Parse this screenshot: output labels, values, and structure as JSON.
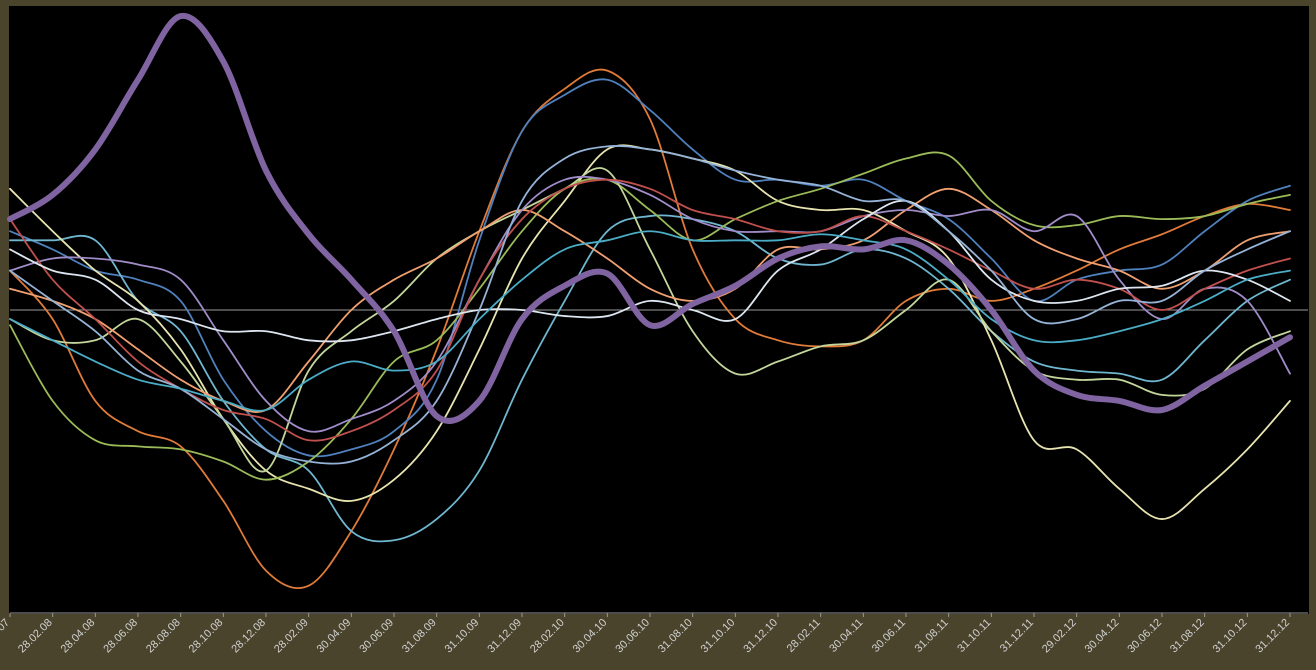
{
  "chart_data": {
    "type": "line",
    "categories": [
      "07",
      "28.02.08",
      "28.04.08",
      "28.06.08",
      "28.08.08",
      "28.10.08",
      "28.12.08",
      "28.02.09",
      "30.04.09",
      "30.06.09",
      "31.08.09",
      "31.10.09",
      "31.12.09",
      "28.02.10",
      "30.04.10",
      "30.06.10",
      "31.08.10",
      "31.10.10",
      "31.12.10",
      "28.02.11",
      "30.04.11",
      "30.06.11",
      "31.08.11",
      "31.10.11",
      "31.12.11",
      "29.02.12",
      "30.04.12",
      "30.06.12",
      "31.08.12",
      "31.10.12",
      "31.12.12"
    ],
    "ylim": [
      -100,
      100
    ],
    "series": [
      {
        "color": "#e07b39",
        "values": [
          13,
          -3,
          -30,
          -40,
          -45,
          -63,
          -86,
          -91,
          -73,
          -46,
          -13,
          26,
          59,
          73,
          79,
          63,
          20,
          -3,
          -10,
          -12,
          -10,
          3,
          7,
          3,
          7,
          13,
          20,
          25,
          31,
          35,
          33
        ]
      },
      {
        "color": "#4f81bd",
        "values": [
          26,
          20,
          13,
          10,
          3,
          -23,
          -40,
          -48,
          -46,
          -40,
          -23,
          23,
          59,
          71,
          76,
          66,
          53,
          43,
          43,
          41,
          43,
          36,
          30,
          17,
          3,
          10,
          13,
          15,
          26,
          36,
          41
        ]
      },
      {
        "color": "#6fb7d0",
        "values": [
          23,
          23,
          23,
          3,
          -7,
          -30,
          -46,
          -53,
          -73,
          -76,
          -69,
          -53,
          -23,
          3,
          26,
          31,
          30,
          26,
          17,
          15,
          20,
          17,
          7,
          -7,
          -17,
          -20,
          -21,
          -23,
          -10,
          3,
          10
        ]
      },
      {
        "color": "#e8e4b0",
        "values": [
          40,
          26,
          13,
          3,
          -13,
          -36,
          -53,
          -59,
          -63,
          -56,
          -40,
          -13,
          17,
          36,
          53,
          53,
          50,
          46,
          36,
          33,
          33,
          26,
          17,
          -10,
          -43,
          -46,
          -59,
          -69,
          -59,
          -46,
          -30
        ]
      },
      {
        "color": "#9bbb59",
        "values": [
          -5,
          -30,
          -43,
          -45,
          -46,
          -50,
          -56,
          -50,
          -36,
          -17,
          -10,
          7,
          26,
          40,
          43,
          33,
          23,
          30,
          36,
          40,
          45,
          50,
          51,
          36,
          28,
          28,
          31,
          30,
          31,
          35,
          38
        ]
      },
      {
        "color": "#c3d69b",
        "values": [
          -3,
          -10,
          -10,
          -3,
          -17,
          -36,
          -53,
          -20,
          -7,
          3,
          17,
          26,
          33,
          40,
          46,
          20,
          -7,
          -21,
          -17,
          -12,
          -10,
          0,
          10,
          -7,
          -20,
          -23,
          -23,
          -28,
          -26,
          -13,
          -7
        ]
      },
      {
        "color": "#f0a070",
        "values": [
          7,
          3,
          -3,
          -13,
          -23,
          -30,
          -33,
          -17,
          0,
          10,
          17,
          26,
          33,
          26,
          17,
          7,
          3,
          7,
          20,
          20,
          23,
          33,
          40,
          33,
          23,
          17,
          13,
          7,
          13,
          23,
          26
        ]
      },
      {
        "color": "#a08cc8",
        "values": [
          13,
          17,
          17,
          15,
          10,
          -10,
          -30,
          -40,
          -36,
          -30,
          -17,
          10,
          33,
          43,
          43,
          38,
          30,
          26,
          26,
          26,
          31,
          33,
          31,
          33,
          26,
          31,
          10,
          -3,
          7,
          3,
          -21
        ]
      },
      {
        "color": "#c0504d",
        "values": [
          30,
          10,
          -3,
          -17,
          -26,
          -33,
          -36,
          -43,
          -40,
          -33,
          -20,
          10,
          30,
          40,
          43,
          40,
          33,
          30,
          26,
          26,
          31,
          26,
          20,
          13,
          7,
          10,
          7,
          0,
          7,
          13,
          17
        ]
      },
      {
        "color": "#dde6f0",
        "values": [
          20,
          13,
          10,
          0,
          -3,
          -7,
          -7,
          -10,
          -10,
          -7,
          -3,
          0,
          0,
          -2,
          -2,
          3,
          0,
          -3,
          13,
          20,
          30,
          36,
          26,
          10,
          3,
          3,
          7,
          8,
          13,
          10,
          3
        ]
      },
      {
        "color": "#95b3d7",
        "values": [
          13,
          3,
          -7,
          -20,
          -26,
          -36,
          -46,
          -50,
          -50,
          -43,
          -30,
          0,
          36,
          50,
          54,
          53,
          50,
          46,
          43,
          41,
          36,
          36,
          26,
          13,
          -3,
          -3,
          3,
          3,
          13,
          20,
          26
        ]
      },
      {
        "color": "#4bacc6",
        "values": [
          -3,
          -10,
          -17,
          -23,
          -26,
          -30,
          -33,
          -23,
          -17,
          -20,
          -17,
          -3,
          10,
          20,
          23,
          26,
          23,
          23,
          23,
          25,
          23,
          20,
          10,
          -3,
          -10,
          -10,
          -7,
          -3,
          3,
          10,
          13
        ]
      },
      {
        "color": "#8064a2",
        "width": 6,
        "values": [
          30,
          38,
          53,
          76,
          97,
          82,
          46,
          25,
          10,
          -7,
          -35,
          -30,
          -3,
          8,
          12,
          -5,
          2,
          8,
          17,
          21,
          20,
          23,
          15,
          0,
          -20,
          -28,
          -30,
          -33,
          -25,
          -17,
          -9
        ]
      }
    ]
  }
}
